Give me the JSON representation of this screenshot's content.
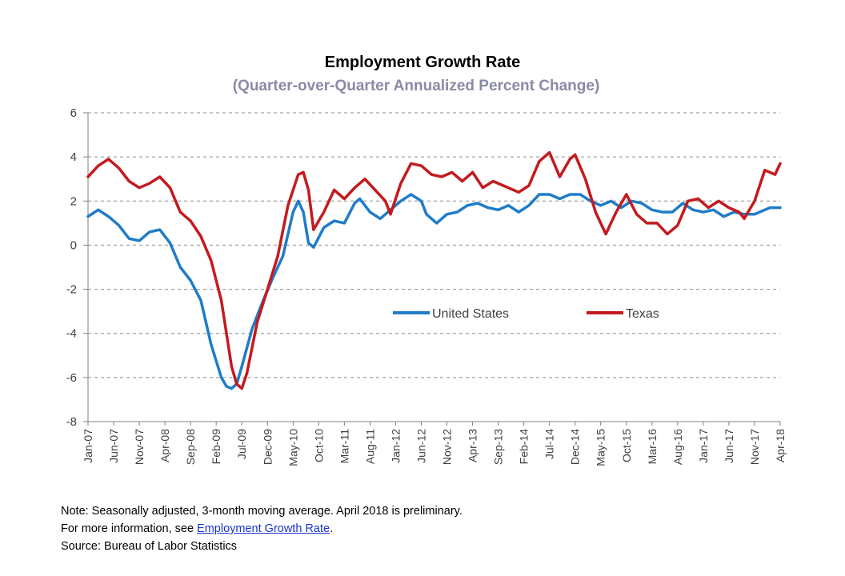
{
  "chart_data": {
    "type": "line",
    "title": "Employment Growth Rate",
    "subtitle": "(Quarter-over-Quarter Annualized Percent Change)",
    "ylim": [
      -8,
      6
    ],
    "yticks": [
      6,
      4,
      2,
      0,
      -2,
      -4,
      -6,
      -8
    ],
    "grid": true,
    "legend_position": "center-right",
    "x_tick_labels": [
      "Jan-07",
      "Jun-07",
      "Nov-07",
      "Apr-08",
      "Sep-08",
      "Feb-09",
      "Jul-09",
      "Dec-09",
      "May-10",
      "Oct-10",
      "Mar-11",
      "Aug-11",
      "Jan-12",
      "Jun-12",
      "Nov-12",
      "Apr-13",
      "Sep-13",
      "Feb-14",
      "Jul-14",
      "Dec-14",
      "May-15",
      "Oct-15",
      "Mar-16",
      "Aug-16",
      "Jan-17",
      "Jun-17",
      "Nov-17",
      "Apr-18"
    ],
    "series": [
      {
        "name": "United States",
        "color": "#1f7cc8",
        "points": [
          [
            "2007-01",
            1.3
          ],
          [
            "2007-03",
            1.6
          ],
          [
            "2007-05",
            1.3
          ],
          [
            "2007-07",
            0.9
          ],
          [
            "2007-09",
            0.3
          ],
          [
            "2007-11",
            0.2
          ],
          [
            "2008-01",
            0.6
          ],
          [
            "2008-03",
            0.7
          ],
          [
            "2008-05",
            0.1
          ],
          [
            "2008-07",
            -1.0
          ],
          [
            "2008-09",
            -1.6
          ],
          [
            "2008-11",
            -2.5
          ],
          [
            "2009-01",
            -4.5
          ],
          [
            "2009-03",
            -6.0
          ],
          [
            "2009-04",
            -6.4
          ],
          [
            "2009-05",
            -6.5
          ],
          [
            "2009-06",
            -6.3
          ],
          [
            "2009-07",
            -5.5
          ],
          [
            "2009-09",
            -3.8
          ],
          [
            "2009-11",
            -2.6
          ],
          [
            "2010-01",
            -1.5
          ],
          [
            "2010-03",
            -0.5
          ],
          [
            "2010-05",
            1.5
          ],
          [
            "2010-06",
            2.0
          ],
          [
            "2010-07",
            1.5
          ],
          [
            "2010-08",
            0.1
          ],
          [
            "2010-09",
            -0.1
          ],
          [
            "2010-11",
            0.8
          ],
          [
            "2011-01",
            1.1
          ],
          [
            "2011-03",
            1.0
          ],
          [
            "2011-05",
            1.9
          ],
          [
            "2011-06",
            2.1
          ],
          [
            "2011-08",
            1.5
          ],
          [
            "2011-10",
            1.2
          ],
          [
            "2011-12",
            1.6
          ],
          [
            "2012-02",
            2.0
          ],
          [
            "2012-04",
            2.3
          ],
          [
            "2012-06",
            2.0
          ],
          [
            "2012-07",
            1.4
          ],
          [
            "2012-09",
            1.0
          ],
          [
            "2012-11",
            1.4
          ],
          [
            "2013-01",
            1.5
          ],
          [
            "2013-03",
            1.8
          ],
          [
            "2013-05",
            1.9
          ],
          [
            "2013-07",
            1.7
          ],
          [
            "2013-09",
            1.6
          ],
          [
            "2013-11",
            1.8
          ],
          [
            "2014-01",
            1.5
          ],
          [
            "2014-03",
            1.8
          ],
          [
            "2014-05",
            2.3
          ],
          [
            "2014-07",
            2.3
          ],
          [
            "2014-09",
            2.1
          ],
          [
            "2014-11",
            2.3
          ],
          [
            "2015-01",
            2.3
          ],
          [
            "2015-03",
            2.0
          ],
          [
            "2015-05",
            1.8
          ],
          [
            "2015-07",
            2.0
          ],
          [
            "2015-09",
            1.7
          ],
          [
            "2015-11",
            2.0
          ],
          [
            "2016-01",
            1.9
          ],
          [
            "2016-03",
            1.6
          ],
          [
            "2016-05",
            1.5
          ],
          [
            "2016-07",
            1.5
          ],
          [
            "2016-09",
            1.9
          ],
          [
            "2016-11",
            1.6
          ],
          [
            "2017-01",
            1.5
          ],
          [
            "2017-03",
            1.6
          ],
          [
            "2017-05",
            1.3
          ],
          [
            "2017-07",
            1.5
          ],
          [
            "2017-09",
            1.4
          ],
          [
            "2017-11",
            1.4
          ],
          [
            "2018-01",
            1.6
          ],
          [
            "2018-02",
            1.7
          ],
          [
            "2018-04",
            1.7
          ]
        ]
      },
      {
        "name": "Texas",
        "color": "#c41a1f",
        "points": [
          [
            "2007-01",
            3.1
          ],
          [
            "2007-03",
            3.6
          ],
          [
            "2007-05",
            3.9
          ],
          [
            "2007-07",
            3.5
          ],
          [
            "2007-09",
            2.9
          ],
          [
            "2007-11",
            2.6
          ],
          [
            "2008-01",
            2.8
          ],
          [
            "2008-03",
            3.1
          ],
          [
            "2008-05",
            2.6
          ],
          [
            "2008-07",
            1.5
          ],
          [
            "2008-09",
            1.1
          ],
          [
            "2008-11",
            0.4
          ],
          [
            "2009-01",
            -0.7
          ],
          [
            "2009-03",
            -2.5
          ],
          [
            "2009-05",
            -5.5
          ],
          [
            "2009-06",
            -6.3
          ],
          [
            "2009-07",
            -6.5
          ],
          [
            "2009-08",
            -5.8
          ],
          [
            "2009-10",
            -3.5
          ],
          [
            "2009-12",
            -2.0
          ],
          [
            "2010-02",
            -0.5
          ],
          [
            "2010-04",
            1.8
          ],
          [
            "2010-06",
            3.2
          ],
          [
            "2010-07",
            3.3
          ],
          [
            "2010-08",
            2.5
          ],
          [
            "2010-09",
            0.7
          ],
          [
            "2010-11",
            1.5
          ],
          [
            "2011-01",
            2.5
          ],
          [
            "2011-03",
            2.1
          ],
          [
            "2011-05",
            2.6
          ],
          [
            "2011-07",
            3.0
          ],
          [
            "2011-09",
            2.5
          ],
          [
            "2011-11",
            2.0
          ],
          [
            "2011-12",
            1.4
          ],
          [
            "2012-02",
            2.8
          ],
          [
            "2012-04",
            3.7
          ],
          [
            "2012-06",
            3.6
          ],
          [
            "2012-08",
            3.2
          ],
          [
            "2012-10",
            3.1
          ],
          [
            "2012-12",
            3.3
          ],
          [
            "2013-02",
            2.9
          ],
          [
            "2013-04",
            3.3
          ],
          [
            "2013-06",
            2.6
          ],
          [
            "2013-08",
            2.9
          ],
          [
            "2013-10",
            2.7
          ],
          [
            "2014-01",
            2.4
          ],
          [
            "2014-03",
            2.7
          ],
          [
            "2014-05",
            3.8
          ],
          [
            "2014-07",
            4.2
          ],
          [
            "2014-09",
            3.1
          ],
          [
            "2014-11",
            3.9
          ],
          [
            "2014-12",
            4.1
          ],
          [
            "2015-02",
            3.0
          ],
          [
            "2015-04",
            1.5
          ],
          [
            "2015-06",
            0.5
          ],
          [
            "2015-08",
            1.5
          ],
          [
            "2015-10",
            2.3
          ],
          [
            "2015-12",
            1.4
          ],
          [
            "2016-02",
            1.0
          ],
          [
            "2016-04",
            1.0
          ],
          [
            "2016-06",
            0.5
          ],
          [
            "2016-08",
            0.9
          ],
          [
            "2016-10",
            2.0
          ],
          [
            "2016-12",
            2.1
          ],
          [
            "2017-02",
            1.7
          ],
          [
            "2017-04",
            2.0
          ],
          [
            "2017-06",
            1.7
          ],
          [
            "2017-08",
            1.5
          ],
          [
            "2017-09",
            1.2
          ],
          [
            "2017-11",
            2.0
          ],
          [
            "2018-01",
            3.4
          ],
          [
            "2018-03",
            3.2
          ],
          [
            "2018-04",
            3.7
          ]
        ]
      }
    ]
  },
  "footer": {
    "note": "Note: Seasonally adjusted, 3-month moving average. April 2018 is preliminary.",
    "more_info_prefix": "For more information, see ",
    "more_info_link": "Employment Growth Rate",
    "more_info_suffix": ".",
    "source": "Source: Bureau of Labor Statistics"
  }
}
